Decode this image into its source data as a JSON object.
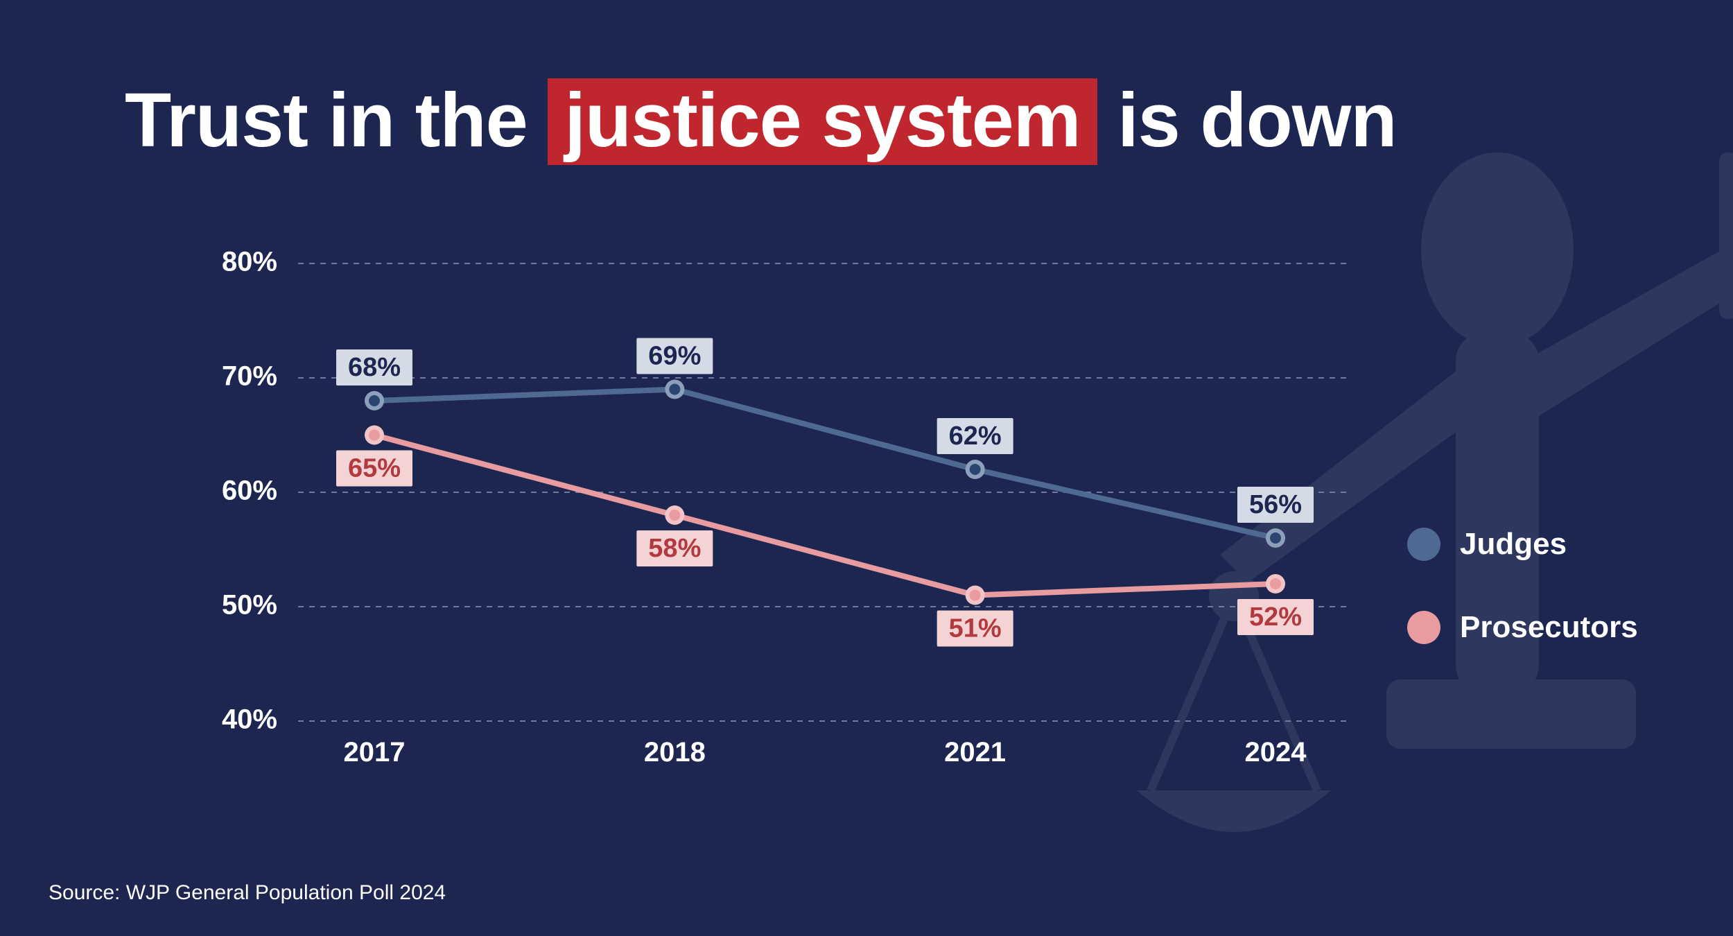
{
  "title": {
    "pre": "Trust in the ",
    "highlight": "justice system",
    "post": " is down",
    "highlight_bg": "#c0262d",
    "text_color": "#ffffff",
    "fontsize": 110,
    "fontweight": 800
  },
  "chart": {
    "type": "line",
    "background_color": "#1c2650",
    "grid_color": "#6f7a9e",
    "grid_dash": "8 8",
    "ylim": [
      40,
      80
    ],
    "yticks": [
      40,
      50,
      60,
      70,
      80
    ],
    "ytick_labels": [
      "40%",
      "50%",
      "60%",
      "70%",
      "80%"
    ],
    "categories": [
      "2017",
      "2018",
      "2021",
      "2024"
    ],
    "tick_fontsize": 40,
    "tick_fontweight": 600,
    "tick_color": "#ffffff",
    "line_width": 8,
    "marker_radius": 14,
    "marker_inner_radius": 8,
    "series": [
      {
        "name": "Judges",
        "color": "#4e6a92",
        "marker_fill": "#2a4670",
        "marker_stroke": "#8ca0bc",
        "values": [
          68,
          69,
          62,
          56
        ],
        "value_labels": [
          "68%",
          "69%",
          "62%",
          "56%"
        ],
        "label_box_fill": "#d5dbe6",
        "label_text_color": "#1c2650",
        "label_position": "above"
      },
      {
        "name": "Prosecutors",
        "color": "#e89ca0",
        "marker_fill": "#e89ca0",
        "marker_stroke": "#f2c4c7",
        "values": [
          65,
          58,
          51,
          52
        ],
        "value_labels": [
          "65%",
          "58%",
          "51%",
          "52%"
        ],
        "label_box_fill": "#f4d3d5",
        "label_text_color": "#b23a3f",
        "label_position": "below"
      }
    ],
    "datalabel_fontsize": 38,
    "datalabel_fontweight": 700,
    "legend": {
      "items": [
        {
          "label": "Judges",
          "color": "#4e6a92"
        },
        {
          "label": "Prosecutors",
          "color": "#e89ca0"
        }
      ],
      "fontsize": 44,
      "text_color": "#ffffff"
    }
  },
  "source": {
    "text": "Source: WJP General Population Poll 2024",
    "fontsize": 30,
    "color": "#ffffff"
  }
}
